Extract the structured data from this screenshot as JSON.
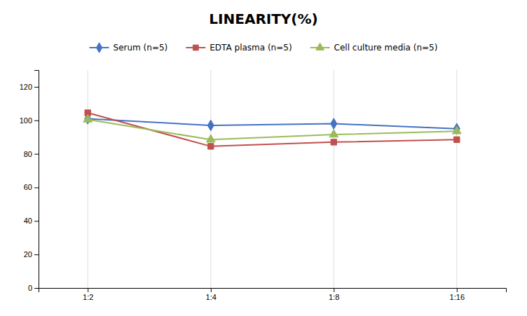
{
  "chart_data": {
    "type": "line",
    "title": "LINEARITY(%)",
    "categories": [
      "1:2",
      "1:4",
      "1:8",
      "1:16"
    ],
    "series": [
      {
        "name": "Serum (n=5)",
        "color": "#4472C4",
        "marker": "diamond",
        "values": [
          101.0,
          97.0,
          98.0,
          95.0
        ]
      },
      {
        "name": "EDTA plasma (n=5)",
        "color": "#C0504D",
        "marker": "square",
        "values": [
          104.5,
          84.5,
          87.0,
          88.5
        ]
      },
      {
        "name": "Cell culture media (n=5)",
        "color": "#9BBB59",
        "marker": "triangle",
        "values": [
          100.5,
          88.5,
          91.5,
          93.5
        ]
      }
    ],
    "ylim": [
      0,
      130
    ],
    "yticks": [
      0,
      20,
      40,
      60,
      80,
      100,
      120
    ],
    "grid": "x",
    "legend": "top"
  }
}
